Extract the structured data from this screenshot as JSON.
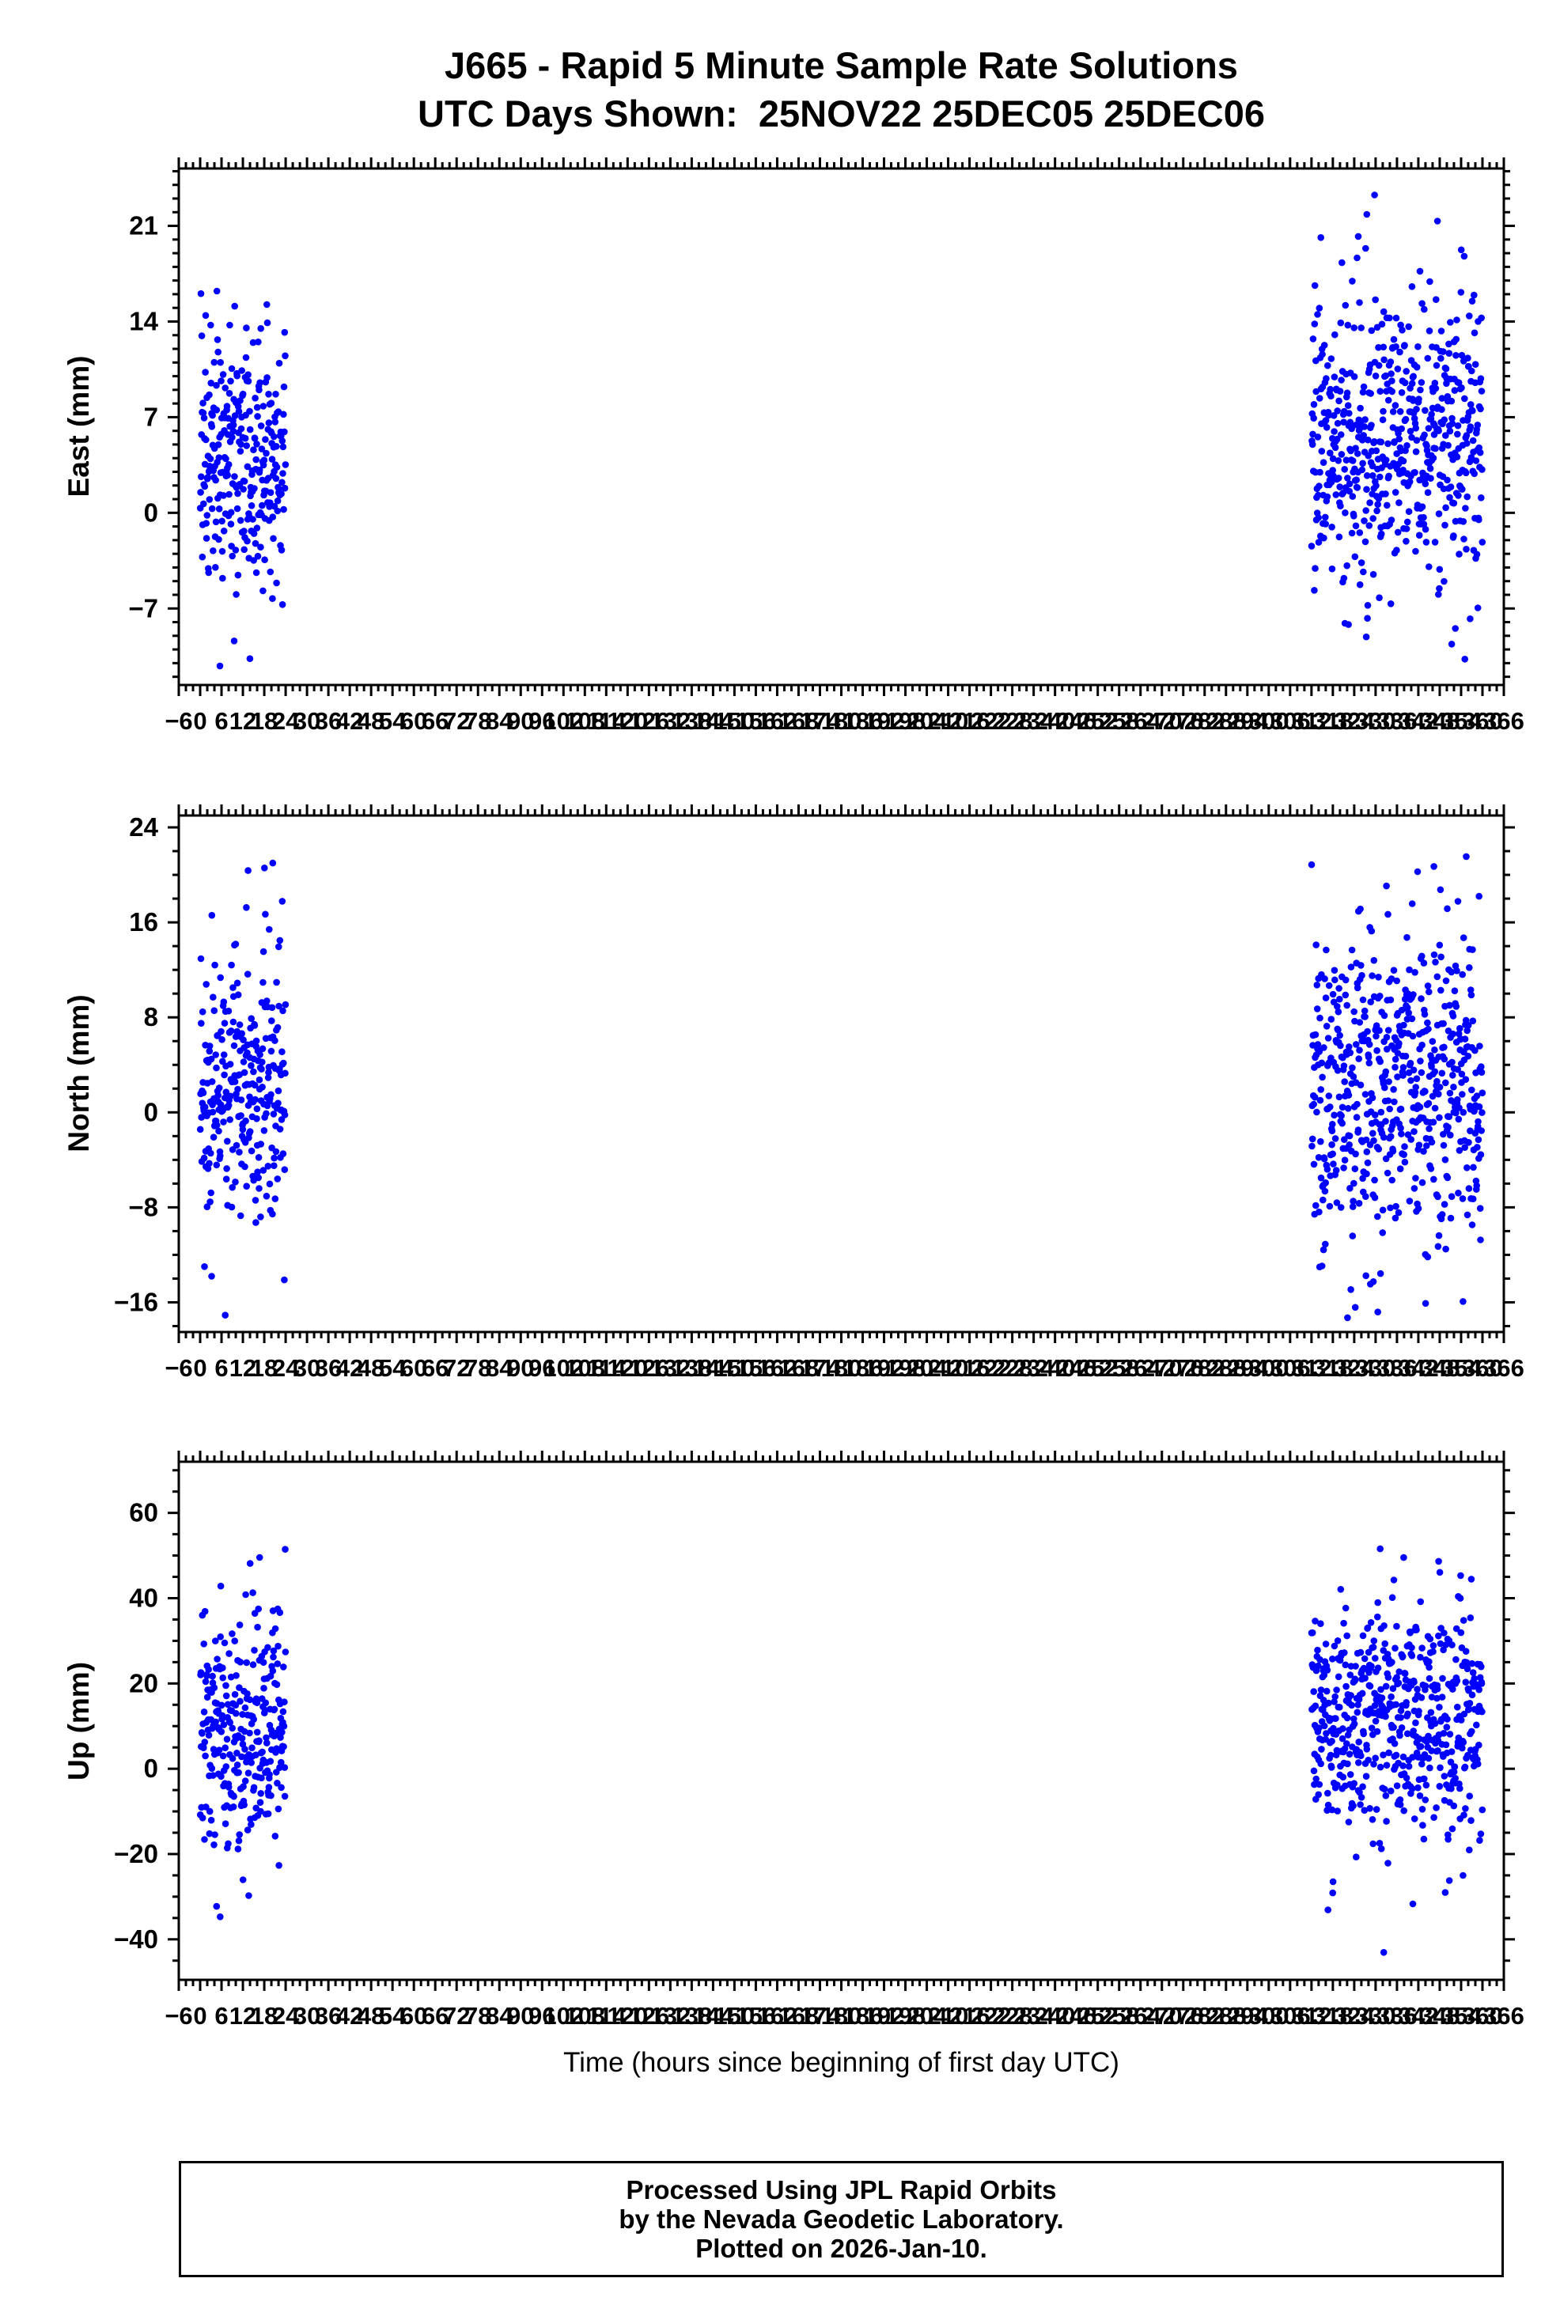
{
  "title_line1": "J665 - Rapid 5 Minute Sample Rate Solutions",
  "title_line2": "UTC Days Shown:  25NOV22 25DEC05 25DEC06",
  "xlabel": "Time (hours since beginning of first day UTC)",
  "footer": {
    "line1": "Processed Using JPL Rapid Orbits",
    "line2": "by the Nevada Geodetic Laboratory.",
    "line3": "Plotted on 2026-Jan-10."
  },
  "point_color": "#0000FF",
  "chart_data": {
    "type": "scatter",
    "title": "J665 - Rapid 5 Minute Sample Rate Solutions",
    "subtitle": "UTC Days Shown:  25NOV22 25DEC05 25DEC06",
    "xlabel": "Time (hours since beginning of first day UTC)",
    "legend": "none",
    "grid": false,
    "x_axis": {
      "min": -6,
      "max": 366,
      "tick_step": 6,
      "minor_step": 2
    },
    "panels": [
      {
        "ylabel": "East (mm)",
        "ymin": -12.6,
        "ymax": 25.2,
        "yticks": [
          -7,
          0,
          7,
          14,
          21
        ],
        "yminor_step": 1,
        "clusters": [
          {
            "x_start": 0,
            "x_end": 24,
            "points": 288,
            "y_mean": 4.0,
            "y_std": 4.5,
            "tail_frac": 0.06,
            "tail_mult": 1.9
          },
          {
            "x_start": 312,
            "x_end": 360,
            "points": 576,
            "y_mean": 5.0,
            "y_std": 5.0,
            "tail_frac": 0.07,
            "tail_mult": 2.0
          }
        ]
      },
      {
        "ylabel": "North (mm)",
        "ymin": -18.5,
        "ymax": 25.0,
        "yticks": [
          -16,
          -8,
          0,
          8,
          16,
          24
        ],
        "yminor_step": 2,
        "clusters": [
          {
            "x_start": 0,
            "x_end": 24,
            "points": 288,
            "y_mean": 2.0,
            "y_std": 5.5,
            "tail_frac": 0.1,
            "tail_mult": 2.0
          },
          {
            "x_start": 312,
            "x_end": 360,
            "points": 576,
            "y_mean": 2.0,
            "y_std": 6.5,
            "tail_frac": 0.08,
            "tail_mult": 1.9
          }
        ]
      },
      {
        "ylabel": "Up (mm)",
        "ymin": -49.5,
        "ymax": 72.0,
        "yticks": [
          -40,
          -20,
          0,
          20,
          40,
          60
        ],
        "yminor_step": 5,
        "clusters": [
          {
            "x_start": 0,
            "x_end": 24,
            "points": 288,
            "y_mean": 10.0,
            "y_std": 14.0,
            "tail_frac": 0.08,
            "tail_mult": 2.0
          },
          {
            "x_start": 312,
            "x_end": 360,
            "points": 576,
            "y_mean": 12.0,
            "y_std": 13.5,
            "tail_frac": 0.08,
            "tail_mult": 2.1
          }
        ]
      }
    ]
  }
}
